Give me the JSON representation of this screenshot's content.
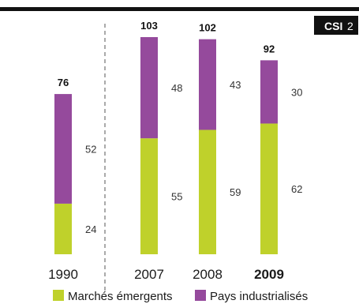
{
  "badge": {
    "label": "CSI",
    "number": "2"
  },
  "colors": {
    "emerging": "#bfd12b",
    "industrialized": "#954a9c",
    "rule": "#111111",
    "divider": "#555555",
    "badge_bg": "#111111"
  },
  "chart_data": {
    "type": "bar",
    "stacked": true,
    "categories": [
      "1990",
      "2007",
      "2008",
      "2009"
    ],
    "highlight_category": "2009",
    "series": [
      {
        "name": "Marchés émergents",
        "values": [
          24,
          55,
          59,
          62
        ],
        "color": "#bfd12b"
      },
      {
        "name": "Pays industrialisés",
        "values": [
          52,
          48,
          43,
          30
        ],
        "color": "#954a9c"
      }
    ],
    "totals": [
      76,
      103,
      102,
      92
    ],
    "ylim": [
      0,
      110
    ],
    "legend_position": "bottom",
    "grid": false,
    "axis_break_after": "1990"
  }
}
